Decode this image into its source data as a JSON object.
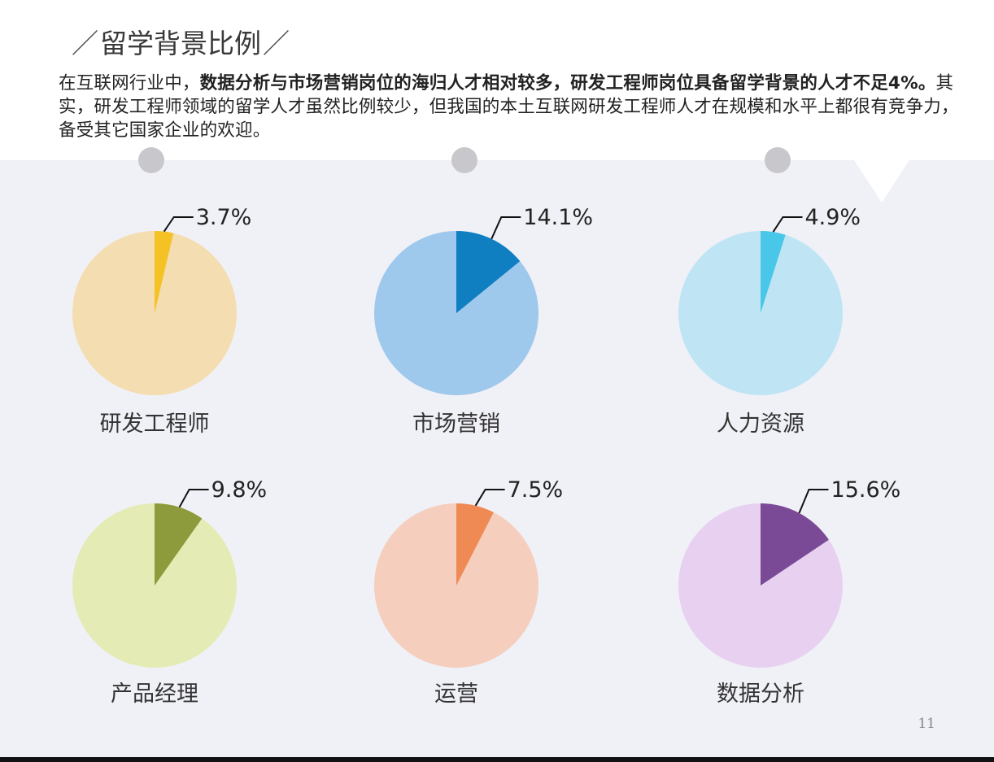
{
  "header": {
    "slash_left": "／",
    "title": "留学背景比例",
    "slash_right": "／"
  },
  "intro": {
    "part1": "在互联网行业中，",
    "part2": "数据分析与市场营销岗位的海归人才相对较多，研发工程师岗位具备留学背景的人才不足4%。",
    "part3": "其实，研发工程师领域的留学人才虽然比例较少，但我国的本土互联网研发工程师人才在规模和水平上都很有竞争力，备受其它国家企业的欢迎。"
  },
  "page_number": "11",
  "chart_data": {
    "type": "pie",
    "charts": [
      {
        "name": "研发工程师",
        "value": 3.7,
        "label": "3.7%",
        "color": "#f5c226",
        "bg": "#f4ddb0"
      },
      {
        "name": "市场营销",
        "value": 14.1,
        "label": "14.1%",
        "color": "#0f7fc2",
        "bg": "#9ec8ec"
      },
      {
        "name": "人力资源",
        "value": 4.9,
        "label": "4.9%",
        "color": "#48c7e8",
        "bg": "#bfe5f5"
      },
      {
        "name": "产品经理",
        "value": 9.8,
        "label": "9.8%",
        "color": "#8d9b3c",
        "bg": "#e4ebb4"
      },
      {
        "name": "运营",
        "value": 7.5,
        "label": "7.5%",
        "color": "#ef8a55",
        "bg": "#f5cebd"
      },
      {
        "name": "数据分析",
        "value": 15.6,
        "label": "15.6%",
        "color": "#7b4a97",
        "bg": "#e8d0f1"
      }
    ]
  }
}
